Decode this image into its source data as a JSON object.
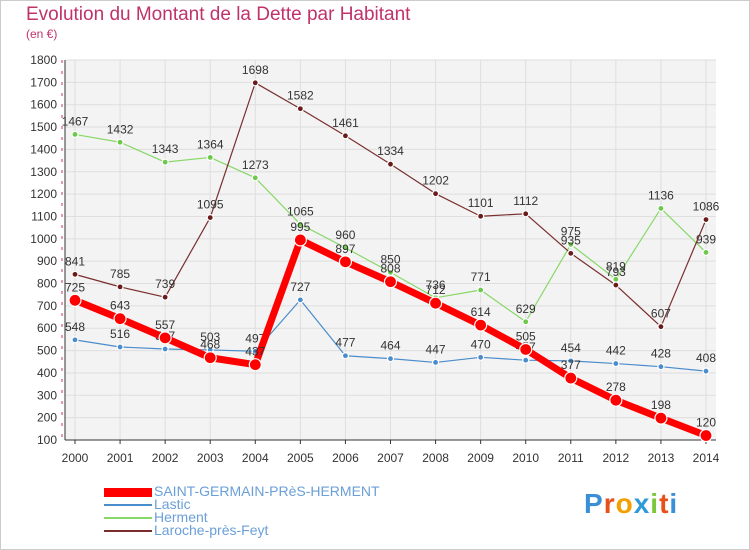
{
  "title": "Evolution du Montant de la Dette par Habitant",
  "unit": "(en €)",
  "logo": "Proxiti",
  "chart_data": {
    "type": "line",
    "x": [
      "2000",
      "2001",
      "2002",
      "2003",
      "2004",
      "2005",
      "2006",
      "2007",
      "2008",
      "2009",
      "2010",
      "2011",
      "2012",
      "2013",
      "2014"
    ],
    "ylim": [
      100,
      1800
    ],
    "yticks": [
      100,
      200,
      300,
      400,
      500,
      600,
      700,
      800,
      900,
      1000,
      1100,
      1200,
      1300,
      1400,
      1500,
      1600,
      1700,
      1800
    ],
    "grid": true,
    "legend_placement": "bottom-left",
    "series": [
      {
        "name": "Lastic",
        "color": "#4a8ccc",
        "dot": "#4a8ccc",
        "width": 1.2,
        "radius": 3,
        "values": [
          548,
          516,
          507,
          503,
          497,
          727,
          477,
          464,
          447,
          470,
          457,
          454,
          442,
          428,
          408
        ],
        "labels": [
          "548",
          "516",
          "507",
          "503",
          "497",
          "727",
          "477",
          "464",
          "447",
          "470",
          "457",
          "454",
          "442",
          "428",
          "408"
        ]
      },
      {
        "name": "Herment",
        "color": "#88d868",
        "dot": "#6cc94a",
        "width": 1.2,
        "radius": 3,
        "values": [
          1467,
          1432,
          1343,
          1364,
          1273,
          1065,
          960,
          850,
          736,
          771,
          629,
          975,
          819,
          1136,
          939
        ],
        "labels": [
          "1467",
          "1432",
          "1343",
          "1364",
          "1273",
          "1065",
          "960",
          "850",
          "736",
          "771",
          "629",
          "975",
          "819",
          "1136",
          "939"
        ]
      },
      {
        "name": "Laroche-près-Feyt",
        "color": "#7a2e2e",
        "dot": "#6b1a1a",
        "width": 1.2,
        "radius": 3,
        "values": [
          841,
          785,
          739,
          1095,
          1698,
          1582,
          1461,
          1334,
          1202,
          1101,
          1112,
          935,
          793,
          607,
          1086
        ],
        "labels": [
          "841",
          "785",
          "739",
          "1095",
          "1698",
          "1582",
          "1461",
          "1334",
          "1202",
          "1101",
          "1112",
          "935",
          "793",
          "607",
          "1086"
        ]
      },
      {
        "name": "SAINT-GERMAIN-PRèS-HERMENT",
        "color": "#ff0000",
        "dot": "#ff0000",
        "width": 7,
        "radius": 6,
        "values": [
          725,
          643,
          557,
          468,
          437,
          995,
          897,
          808,
          712,
          614,
          505,
          377,
          278,
          198,
          120
        ],
        "labels": [
          "725",
          "643",
          "557",
          "468",
          "437",
          "995",
          "897",
          "808",
          "712",
          "614",
          "505",
          "377",
          "278",
          "198",
          "120"
        ]
      }
    ],
    "legend_order": [
      "SAINT-GERMAIN-PRèS-HERMENT",
      "Lastic",
      "Herment",
      "Laroche-près-Feyt"
    ]
  }
}
